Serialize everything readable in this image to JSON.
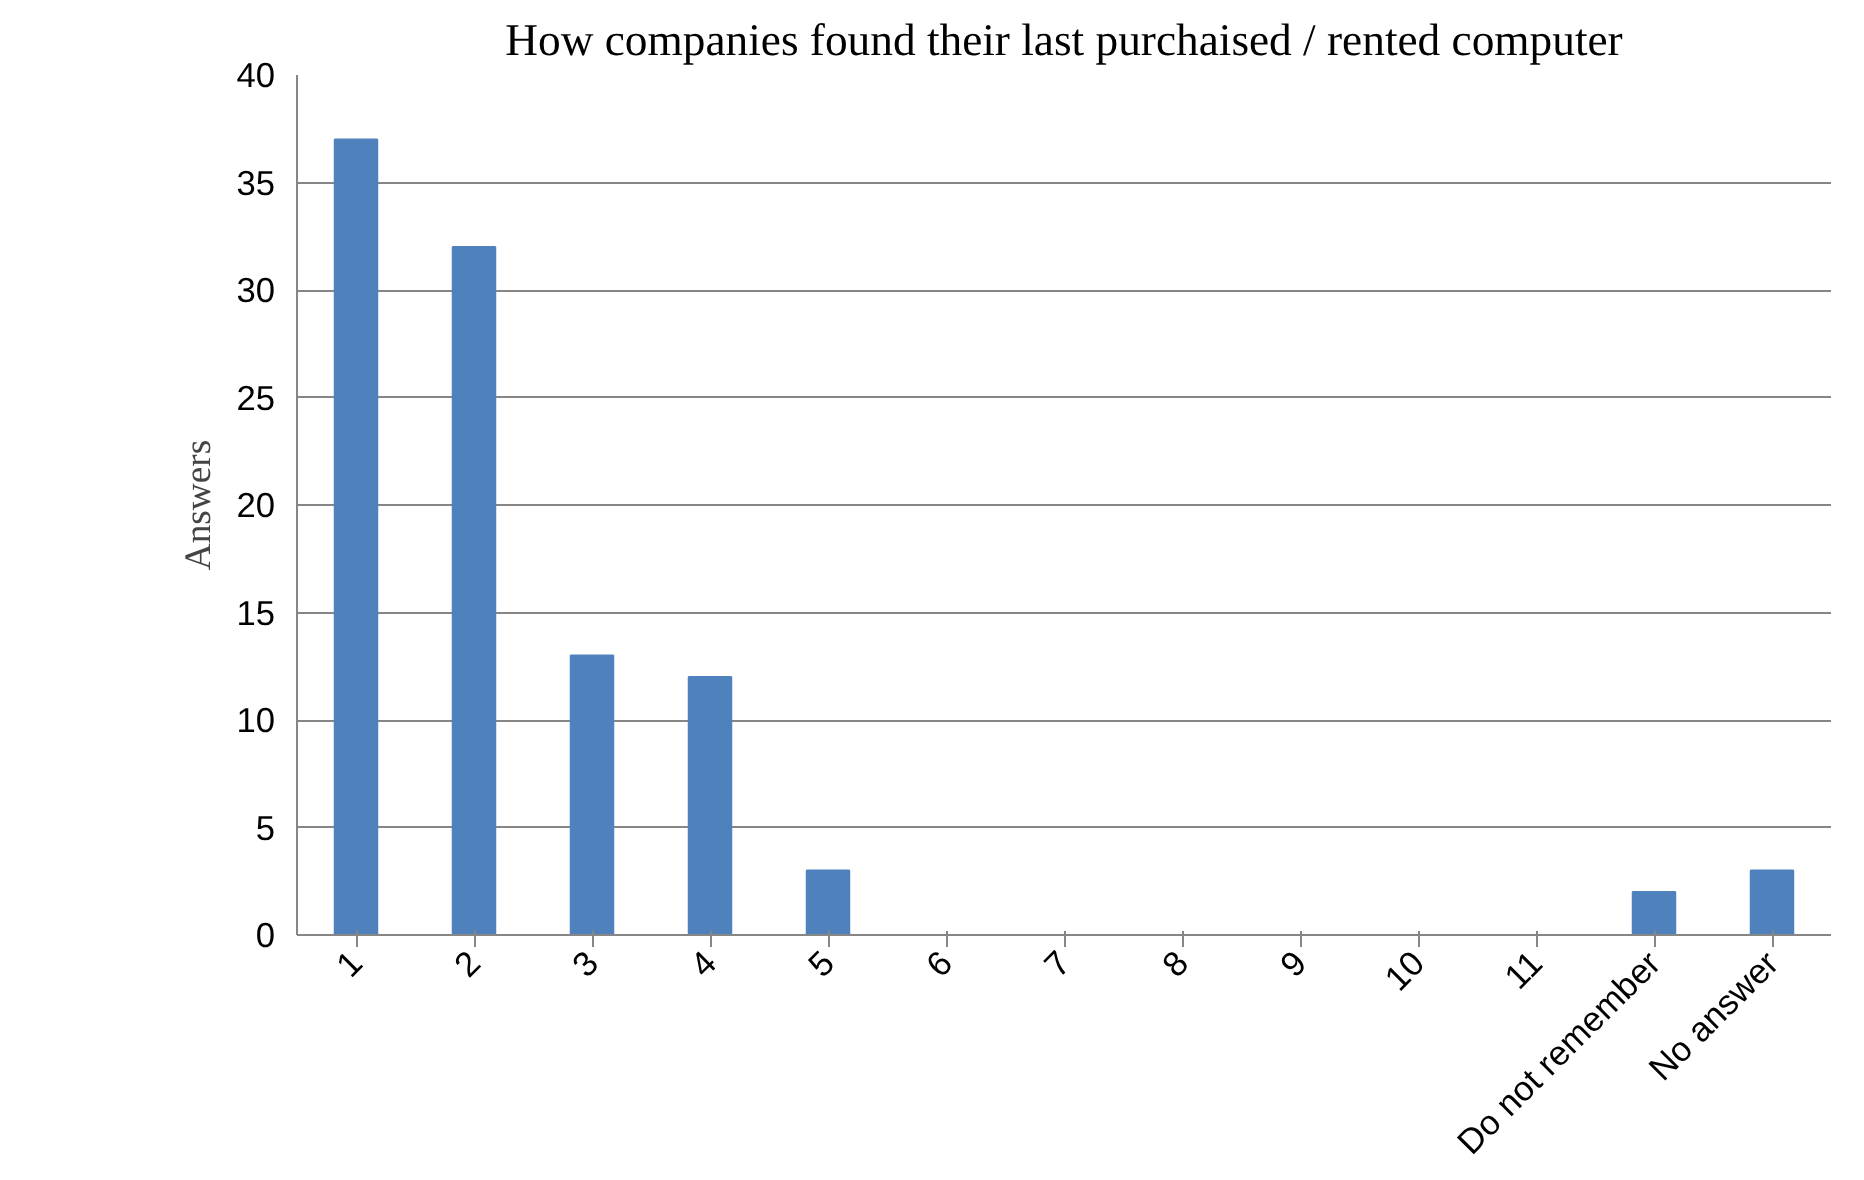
{
  "chart_data": {
    "type": "bar",
    "title": "How companies found their last purchaised / rented computer",
    "ylabel": "Answers",
    "categories": [
      "1",
      "2",
      "3",
      "4",
      "5",
      "6",
      "7",
      "8",
      "9",
      "10",
      "11",
      "Do not remember",
      "No answer"
    ],
    "values": [
      37,
      32,
      13,
      12,
      3,
      0,
      0,
      0,
      0,
      0,
      0,
      2,
      3
    ],
    "color": "#4f81bd",
    "ylim": [
      0,
      40
    ],
    "yticks": [
      0,
      5,
      10,
      15,
      20,
      25,
      30,
      35,
      40
    ],
    "grid": "y"
  }
}
